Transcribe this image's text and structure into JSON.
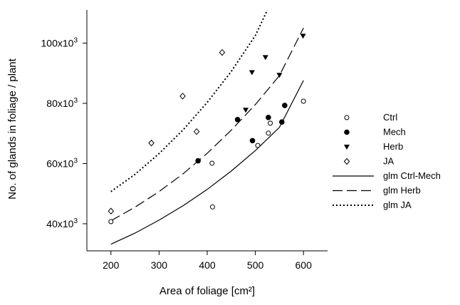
{
  "chart_data": {
    "type": "scatter",
    "xlabel": "Area of foliage [cm²]",
    "ylabel": "No. of glands in foliage / plant",
    "xlim": [
      150,
      650
    ],
    "ylim": [
      31000,
      111000
    ],
    "xticks": [
      200,
      300,
      400,
      500,
      600
    ],
    "yticks": [
      {
        "value": 40000,
        "base": "40x10",
        "exp": "3"
      },
      {
        "value": 60000,
        "base": "60x10",
        "exp": "3"
      },
      {
        "value": 80000,
        "base": "80x10",
        "exp": "3"
      },
      {
        "value": 100000,
        "base": "100x10",
        "exp": "3"
      }
    ],
    "grid": false,
    "legend_position": "right",
    "series": [
      {
        "name": "Ctrl",
        "marker": "circle-open",
        "points": [
          [
            200,
            40700
          ],
          [
            410,
            60100
          ],
          [
            411,
            45600
          ],
          [
            505,
            66000
          ],
          [
            527,
            70100
          ],
          [
            531,
            73400
          ],
          [
            600,
            80700
          ]
        ]
      },
      {
        "name": "Mech",
        "marker": "circle-filled",
        "points": [
          [
            381,
            60900
          ],
          [
            463,
            74600
          ],
          [
            494,
            67600
          ],
          [
            527,
            75300
          ],
          [
            555,
            73800
          ],
          [
            561,
            79300
          ]
        ]
      },
      {
        "name": "Herb",
        "marker": "triangle-down-filled",
        "points": [
          [
            480,
            77800
          ],
          [
            493,
            90300
          ],
          [
            521,
            95300
          ],
          [
            550,
            89400
          ],
          [
            599,
            102400
          ]
        ]
      },
      {
        "name": "JA",
        "marker": "diamond-open",
        "points": [
          [
            200,
            44200
          ],
          [
            284,
            66800
          ],
          [
            349,
            82400
          ],
          [
            378,
            70600
          ],
          [
            431,
            96900
          ]
        ]
      }
    ],
    "fits": [
      {
        "name": "glm Ctrl-Mech",
        "style": "solid",
        "x": [
          200,
          250,
          300,
          350,
          400,
          450,
          500,
          550,
          600
        ],
        "y": [
          33200,
          36900,
          41200,
          46000,
          51400,
          57500,
          64300,
          72000,
          87600
        ]
      },
      {
        "name": "glm Herb",
        "style": "dashed",
        "x": [
          200,
          250,
          300,
          350,
          400,
          450,
          500,
          550,
          600
        ],
        "y": [
          41000,
          45500,
          50700,
          56600,
          63400,
          71100,
          79600,
          89200,
          105000
        ]
      },
      {
        "name": "glm JA",
        "style": "dotted",
        "x": [
          200,
          250,
          300,
          350,
          400,
          450,
          500,
          525
        ],
        "y": [
          50700,
          56400,
          63300,
          71200,
          80300,
          90600,
          102500,
          111000
        ]
      }
    ]
  }
}
